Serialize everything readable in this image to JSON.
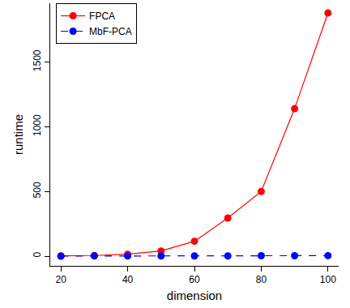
{
  "chart_data": {
    "type": "line",
    "x_label": "dimension",
    "y_label": "runtime",
    "x": [
      20,
      30,
      40,
      50,
      60,
      70,
      80,
      90,
      100
    ],
    "series": [
      {
        "name": "FPCA",
        "color": "#ff0000",
        "marker": "circle",
        "line_style": "solid",
        "values": [
          2,
          5,
          15,
          40,
          115,
          295,
          500,
          1140,
          1880
        ]
      },
      {
        "name": "MbF-PCA",
        "color": "#0000ff",
        "marker": "circle",
        "line_style": "dashed",
        "values": [
          0.5,
          1,
          1,
          1.5,
          2,
          2,
          3,
          3,
          4
        ]
      }
    ],
    "xlim": [
      16.8,
      103.2
    ],
    "xticks": [
      20,
      40,
      60,
      80,
      100
    ],
    "ylim": [
      -75,
      1955
    ],
    "yticks": [
      0,
      500,
      1000,
      1500
    ],
    "grid": false,
    "legend": "top-left"
  }
}
